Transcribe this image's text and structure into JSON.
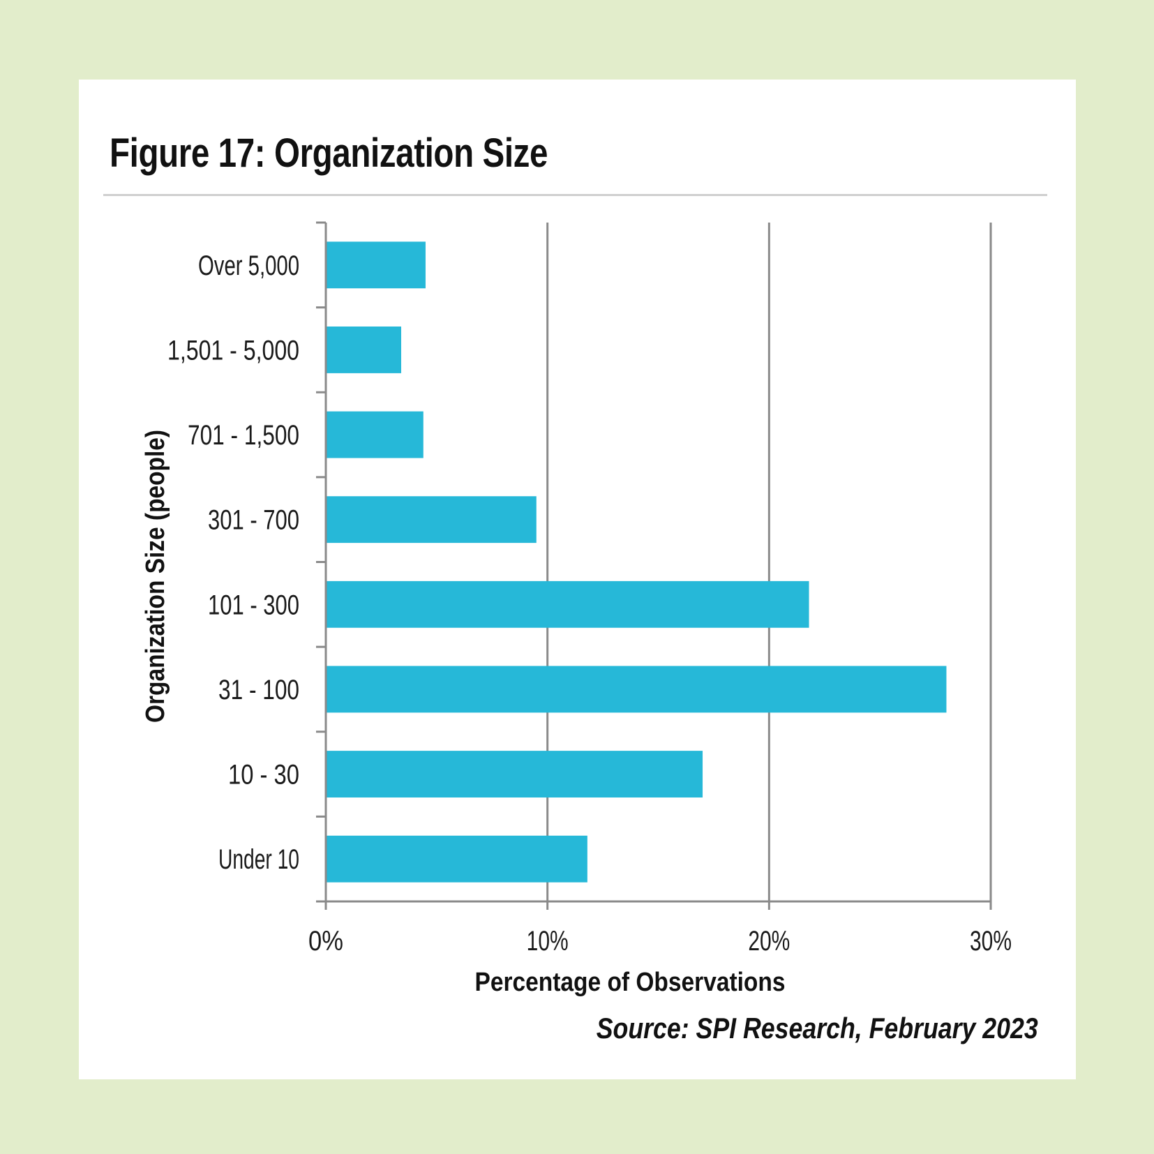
{
  "title": "Figure 17:  Organization Size",
  "source": "Source:  SPI Research, February 2023",
  "colors": {
    "bar": "#26b8d8",
    "grid": "#8a8a8a",
    "background": "#e2edcb",
    "card": "#ffffff"
  },
  "chart_data": {
    "type": "bar",
    "orientation": "horizontal",
    "categories": [
      "Over 5,000",
      "1,501 - 5,000",
      "701 - 1,500",
      "301 - 700",
      "101 - 300",
      "31 - 100",
      "10 - 30",
      "Under 10"
    ],
    "values": [
      4.5,
      3.4,
      4.4,
      9.5,
      21.8,
      28.0,
      17.0,
      11.8
    ],
    "xlabel": "Percentage of Observations",
    "ylabel": "Organization Size (people)",
    "xlim": [
      0,
      30
    ],
    "xticks": [
      "0%",
      "10%",
      "20%",
      "30%"
    ],
    "grid": true,
    "legend": "none"
  }
}
